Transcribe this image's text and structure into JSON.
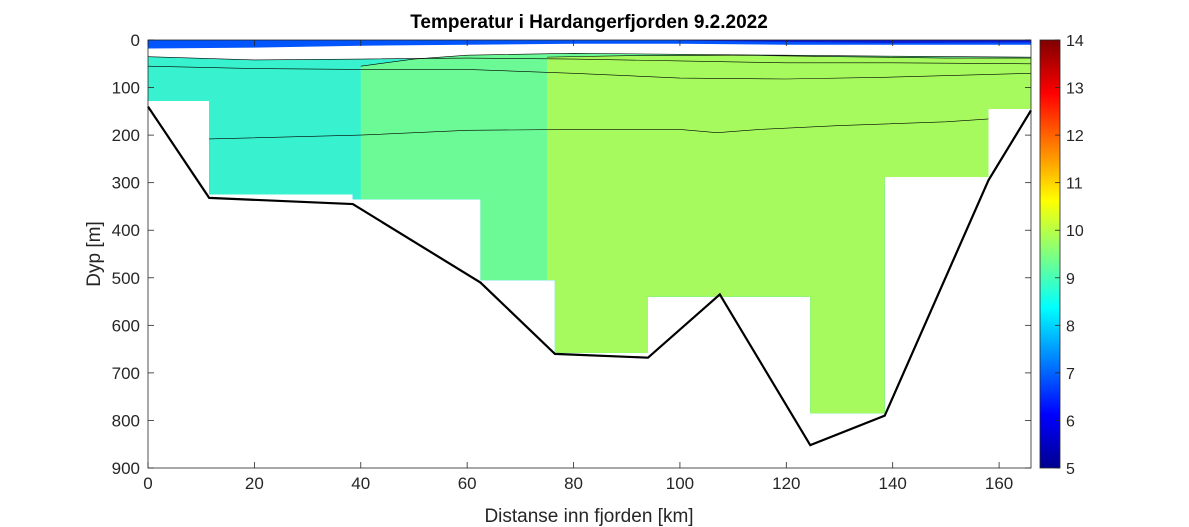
{
  "chart_data": {
    "type": "contour",
    "title": "Temperatur i Hardangerfjorden 9.2.2022",
    "xlabel": "Distanse inn fjorden [km]",
    "ylabel": "Dyp [m]",
    "xlim": [
      0,
      166
    ],
    "ylim": [
      900,
      0
    ],
    "xticks": [
      "0",
      "20",
      "40",
      "60",
      "80",
      "100",
      "120",
      "140",
      "160"
    ],
    "yticks": [
      "0",
      "100",
      "200",
      "300",
      "400",
      "500",
      "600",
      "700",
      "800",
      "900"
    ],
    "colorbar": {
      "min": 5,
      "max": 14,
      "ticks": [
        "5",
        "6",
        "7",
        "8",
        "9",
        "10",
        "11",
        "12",
        "13",
        "14"
      ],
      "colormap": "jet"
    },
    "stations": [
      {
        "x_km": 0,
        "bottom_depth_m": 128
      },
      {
        "x_km": 11.5,
        "bottom_depth_m": 325
      },
      {
        "x_km": 38.5,
        "bottom_depth_m": 335
      },
      {
        "x_km": 62.5,
        "bottom_depth_m": 505
      },
      {
        "x_km": 76.5,
        "bottom_depth_m": 658
      },
      {
        "x_km": 94,
        "bottom_depth_m": 540
      },
      {
        "x_km": 124.5,
        "bottom_depth_m": 785
      },
      {
        "x_km": 138.5,
        "bottom_depth_m": 288
      },
      {
        "x_km": 158,
        "bottom_depth_m": 145
      },
      {
        "x_km": 166,
        "bottom_depth_m": 145
      }
    ],
    "bathymetry": [
      {
        "x": 0,
        "depth": 140
      },
      {
        "x": 11.5,
        "depth": 332
      },
      {
        "x": 38.5,
        "depth": 345
      },
      {
        "x": 62.5,
        "depth": 510
      },
      {
        "x": 76.5,
        "depth": 660
      },
      {
        "x": 94,
        "depth": 668
      },
      {
        "x": 107.5,
        "depth": 535
      },
      {
        "x": 124.5,
        "depth": 852
      },
      {
        "x": 138.5,
        "depth": 790
      },
      {
        "x": 158,
        "depth": 295
      },
      {
        "x": 166,
        "depth": 148
      }
    ],
    "layers": [
      {
        "temperature": 7.5,
        "color": "#0f86ff",
        "top_profile": [
          [
            0,
            128
          ],
          [
            11.5,
            208
          ],
          [
            40,
            200
          ],
          [
            60,
            190
          ],
          [
            80,
            188
          ],
          [
            100,
            188
          ],
          [
            107,
            195
          ],
          [
            115,
            188
          ],
          [
            130,
            180
          ],
          [
            150,
            172
          ],
          [
            166,
            160
          ]
        ]
      },
      {
        "temperature": 8.2,
        "color": "#00dcfa",
        "top_profile": [
          [
            0,
            55
          ],
          [
            20,
            60
          ],
          [
            40,
            62
          ],
          [
            60,
            62
          ],
          [
            80,
            70
          ],
          [
            100,
            80
          ],
          [
            120,
            82
          ],
          [
            140,
            78
          ],
          [
            166,
            70
          ]
        ]
      },
      {
        "temperature": 8.6,
        "color": "#38f2cf",
        "top_profile": [
          [
            0,
            35
          ],
          [
            20,
            42
          ],
          [
            40,
            40
          ],
          [
            60,
            38
          ],
          [
            80,
            40
          ],
          [
            100,
            44
          ],
          [
            120,
            48
          ],
          [
            140,
            48
          ],
          [
            166,
            50
          ]
        ]
      },
      {
        "temperature": 9.0,
        "color": "#6bfa96",
        "top_profile": [
          [
            40,
            55
          ],
          [
            50,
            40
          ],
          [
            60,
            32
          ],
          [
            80,
            28
          ],
          [
            100,
            30
          ],
          [
            120,
            32
          ],
          [
            140,
            34
          ],
          [
            166,
            36
          ]
        ]
      },
      {
        "temperature": 9.3,
        "color": "#a6fa5e",
        "top_profile": [
          [
            75,
            36
          ],
          [
            90,
            33
          ],
          [
            110,
            32
          ],
          [
            130,
            35
          ],
          [
            150,
            38
          ],
          [
            166,
            38
          ]
        ]
      },
      {
        "temperature": 6.8,
        "color": "#0055ff",
        "top_profile": [
          [
            0,
            0
          ],
          [
            166,
            0
          ]
        ],
        "bottom_profile": [
          [
            0,
            18
          ],
          [
            20,
            16
          ],
          [
            40,
            12
          ],
          [
            60,
            10
          ],
          [
            80,
            8
          ],
          [
            100,
            8
          ],
          [
            120,
            10
          ],
          [
            140,
            10
          ],
          [
            166,
            10
          ]
        ]
      },
      {
        "temperature": 6.0,
        "color": "#0a1ad8",
        "top_profile": [
          [
            100,
            0
          ],
          [
            166,
            0
          ]
        ],
        "bottom_profile": [
          [
            100,
            1
          ],
          [
            120,
            4
          ],
          [
            140,
            6
          ],
          [
            166,
            5
          ]
        ]
      }
    ]
  }
}
